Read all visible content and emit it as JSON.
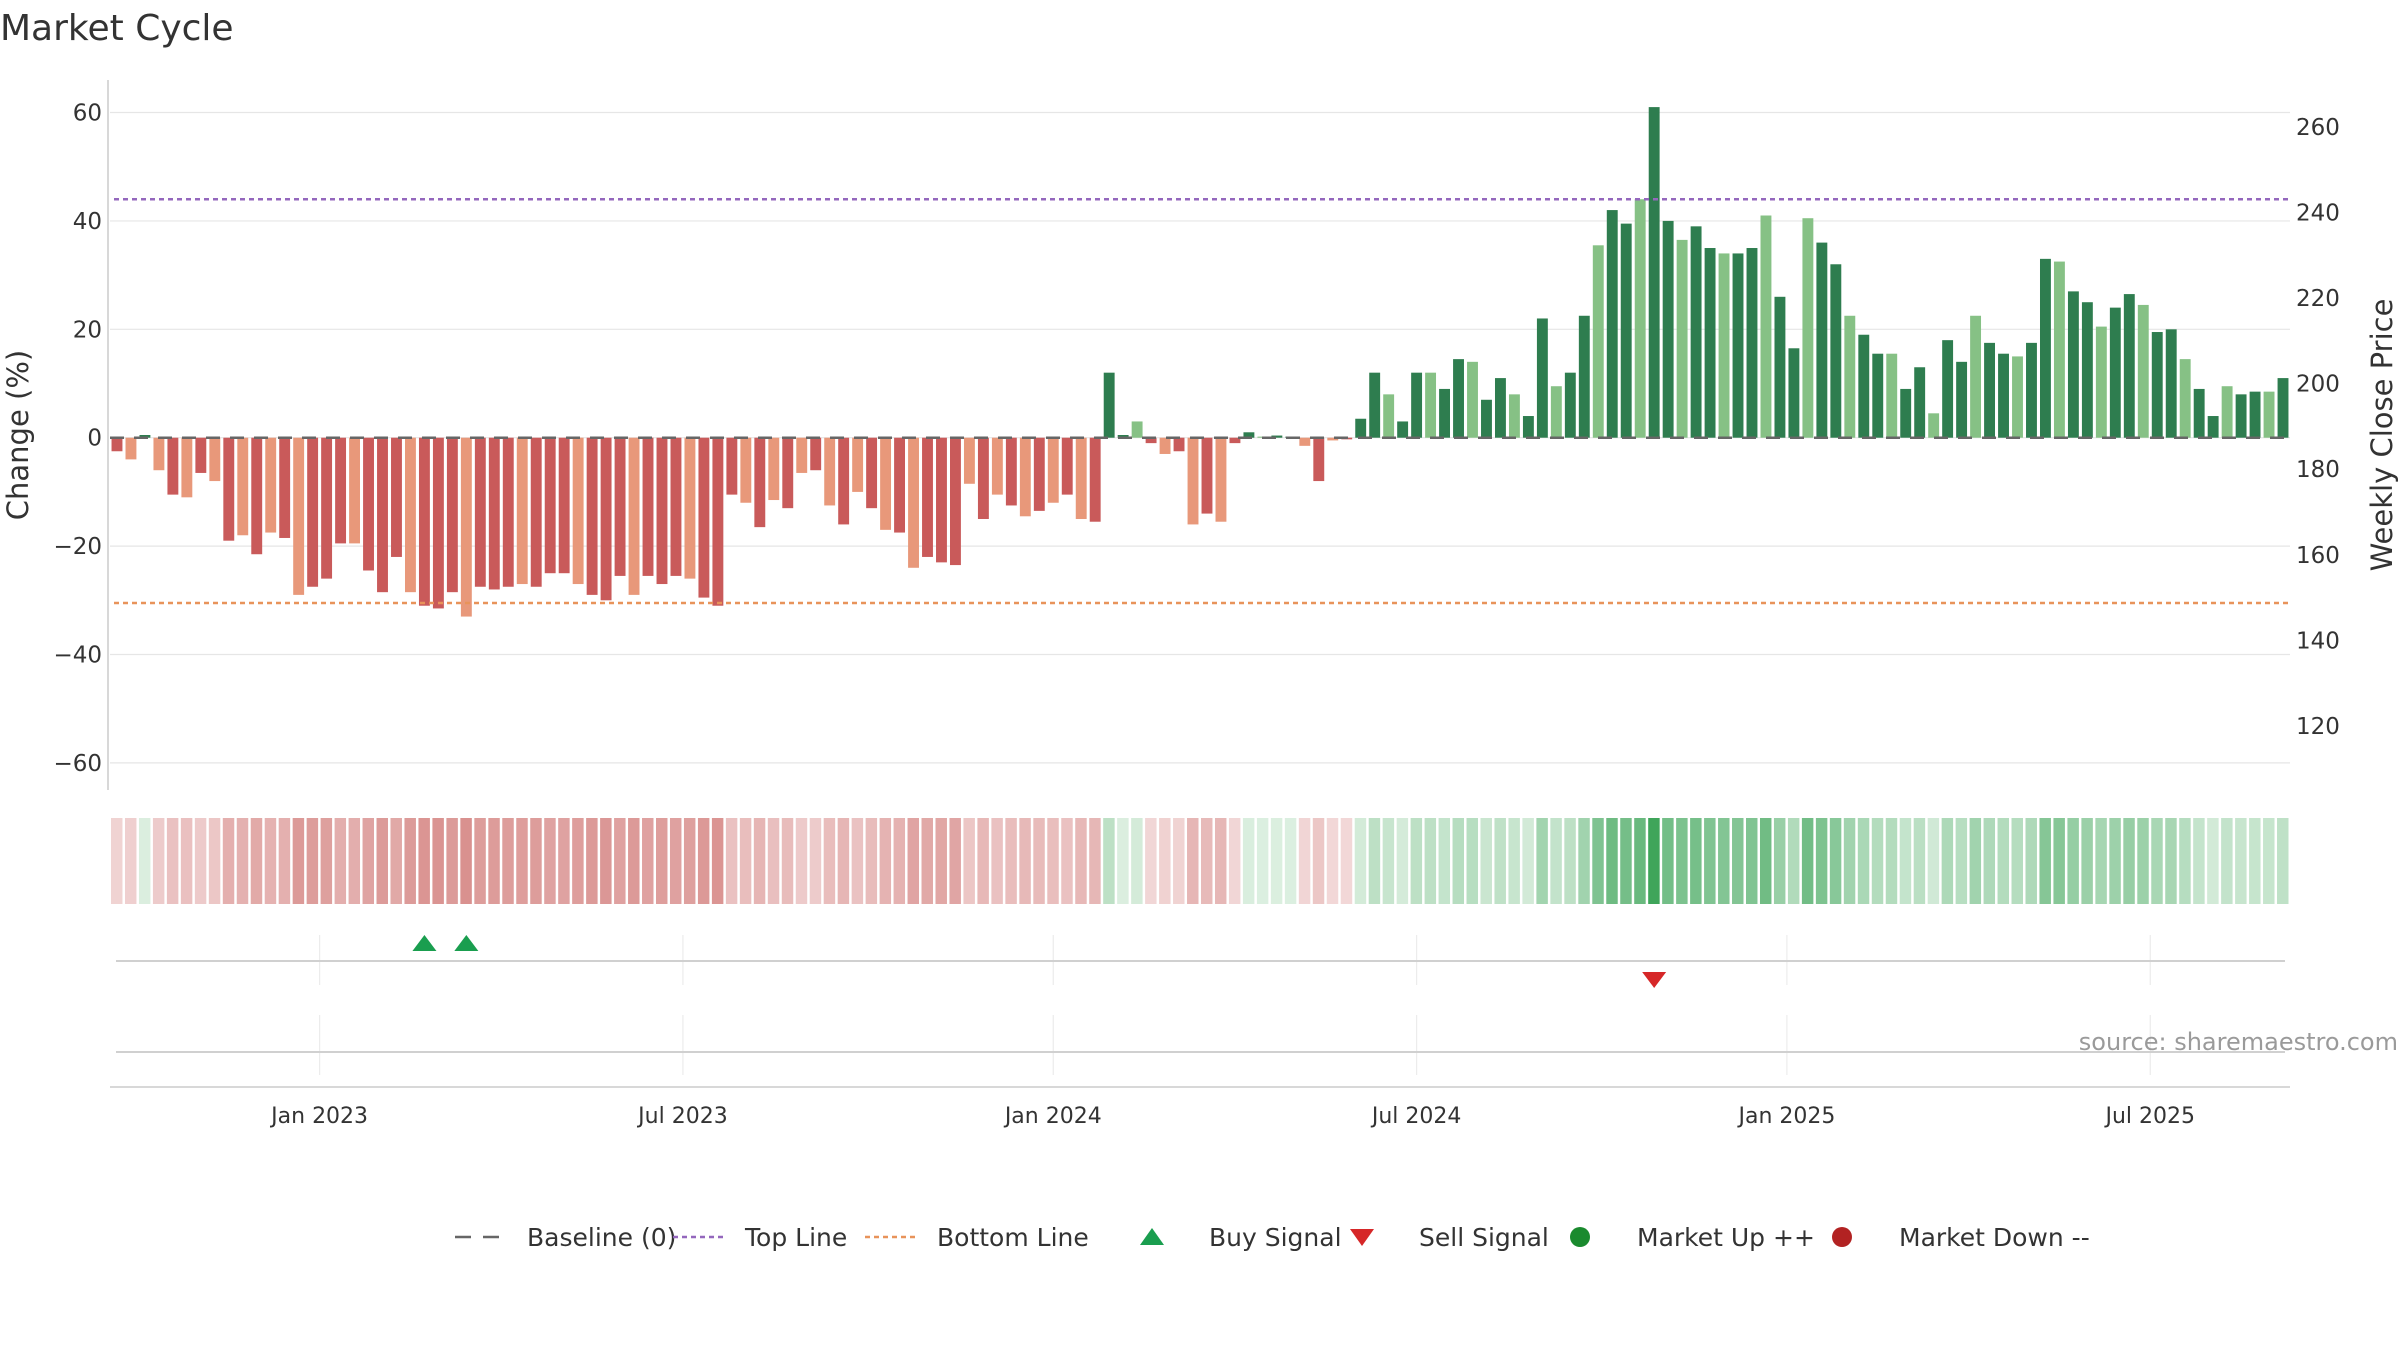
{
  "chart_data": {
    "type": "bar",
    "title": "Market Cycle",
    "source": "source: sharemaestro.com",
    "y_left_label": "Change (%)",
    "y_right_label": "Weekly Close Price",
    "y_left_ticks": [
      "60",
      "40",
      "20",
      "0",
      "−20",
      "−40",
      "−60"
    ],
    "y_left_tick_values": [
      60,
      40,
      20,
      0,
      -20,
      -40,
      -60
    ],
    "y_right_ticks": [
      "260",
      "240",
      "220",
      "200",
      "180",
      "160",
      "140",
      "120"
    ],
    "y_right_tick_values": [
      260,
      240,
      220,
      200,
      180,
      160,
      140,
      120
    ],
    "ylim": [
      -65,
      66
    ],
    "y_right_lim": [
      105,
      271
    ],
    "top_line": 44,
    "bottom_line": -30.5,
    "x_ticks": [
      "Jan 2023",
      "Jul 2023",
      "Jan 2024",
      "Jul 2024",
      "Jan 2025",
      "Jul 2025"
    ],
    "x_tick_week_index": [
      15,
      41,
      67.5,
      93.5,
      120,
      146
    ],
    "values": [
      -2.5,
      -4,
      0.5,
      -6,
      -10.5,
      -11,
      -6.5,
      -8,
      -19,
      -18,
      -21.5,
      -17.5,
      -18.5,
      -29,
      -27.5,
      -26,
      -19.5,
      -19.5,
      -24.5,
      -28.5,
      -22,
      -28.5,
      -31,
      -31.5,
      -28.5,
      -33,
      -27.5,
      -28,
      -27.5,
      -27,
      -27.5,
      -25,
      -25,
      -27,
      -29,
      -30,
      -25.5,
      -29,
      -25.5,
      -27,
      -25.5,
      -26,
      -29.5,
      -31,
      -10.5,
      -12,
      -16.5,
      -11.5,
      -13,
      -6.5,
      -6,
      -12.5,
      -16,
      -10,
      -13,
      -17,
      -17.5,
      -24,
      -22,
      -23,
      -23.5,
      -8.5,
      -15,
      -10.5,
      -12.5,
      -14.5,
      -13.5,
      -12,
      -10.5,
      -15,
      -15.5,
      12,
      0.5,
      3,
      -1,
      -3,
      -2.5,
      -16,
      -14,
      -15.5,
      -1,
      1,
      0.2,
      0.4,
      0.2,
      -1.5,
      -8,
      -0.5,
      -0.3,
      3.5,
      12,
      8,
      3,
      12,
      12,
      9,
      14.5,
      14,
      7,
      11,
      8,
      4,
      22,
      9.5,
      12,
      22.5,
      35.5,
      42,
      39.5,
      44,
      61,
      40,
      36.5,
      39,
      35,
      34,
      34,
      35,
      41,
      26,
      16.5,
      40.5,
      36,
      32,
      22.5,
      19,
      15.5,
      15.5,
      9,
      13,
      4.5,
      18,
      14,
      22.5,
      17.5,
      15.5,
      15,
      17.5,
      33,
      32.5,
      27,
      25,
      20.5,
      24,
      26.5,
      24.5,
      19.5,
      20,
      14.5,
      9,
      4,
      9.5,
      8,
      8.5,
      8.5,
      11
    ],
    "heat_strip_values": [
      -2.5,
      -4,
      0.5,
      -6,
      -10.5,
      -11,
      -6.5,
      -8,
      -19,
      -18,
      -21.5,
      -17.5,
      -18.5,
      -29,
      -27.5,
      -26,
      -19.5,
      -19.5,
      -24.5,
      -28.5,
      -22,
      -28.5,
      -31,
      -31.5,
      -28.5,
      -33,
      -27.5,
      -28,
      -27.5,
      -27,
      -27.5,
      -25,
      -25,
      -27,
      -29,
      -30,
      -25.5,
      -29,
      -25.5,
      -27,
      -25.5,
      -26,
      -29.5,
      -31,
      -10.5,
      -12,
      -16.5,
      -11.5,
      -13,
      -6.5,
      -6,
      -12.5,
      -16,
      -10,
      -13,
      -17,
      -17.5,
      -24,
      -22,
      -23,
      -23.5,
      -8.5,
      -15,
      -10.5,
      -12.5,
      -14.5,
      -13.5,
      -12,
      -10.5,
      -15,
      -15.5,
      12,
      0.5,
      3,
      -1,
      -3,
      -2.5,
      -16,
      -14,
      -15.5,
      -1,
      1,
      0.2,
      0.4,
      0.2,
      -1.5,
      -8,
      -0.5,
      -0.3,
      3.5,
      12,
      8,
      3,
      12,
      12,
      9,
      14.5,
      14,
      7,
      11,
      8,
      4,
      22,
      9.5,
      12,
      22.5,
      35.5,
      42,
      39.5,
      44,
      61,
      40,
      36.5,
      39,
      35,
      34,
      34,
      35,
      41,
      26,
      16.5,
      40.5,
      36,
      32,
      22.5,
      19,
      15.5,
      15.5,
      9,
      13,
      4.5,
      18,
      14,
      22.5,
      17.5,
      15.5,
      15,
      17.5,
      33,
      32.5,
      27,
      25,
      20.5,
      24,
      26.5,
      24.5,
      19.5,
      20,
      14.5,
      9,
      4,
      9.5,
      8,
      8.5,
      8.5,
      11
    ],
    "buy_signal_week_index": [
      22,
      25
    ],
    "sell_signal_week_index": [
      110
    ],
    "colors": {
      "neg_dark": "#c95a5a",
      "neg_light": "#e8987a",
      "pos_dark": "#2e7d4f",
      "pos_light": "#86c185",
      "top_line": "#9467bd",
      "bottom_line": "#e8935a",
      "baseline": "#666666",
      "buy": "#1a9e4f",
      "sell": "#d62728",
      "market_up": "#1a8a2e",
      "market_down": "#b22222"
    },
    "legend": [
      {
        "label": "Baseline (0)",
        "kind": "dash",
        "color": "#666666"
      },
      {
        "label": "Top Line",
        "kind": "dot",
        "color": "#9467bd"
      },
      {
        "label": "Bottom Line",
        "kind": "dot",
        "color": "#e8935a"
      },
      {
        "label": "Buy Signal",
        "kind": "tri-up",
        "color": "#1a9e4f"
      },
      {
        "label": "Sell Signal",
        "kind": "tri-down",
        "color": "#d62728"
      },
      {
        "label": "Market Up ++",
        "kind": "circle",
        "color": "#1a8a2e"
      },
      {
        "label": "Market Down --",
        "kind": "circle",
        "color": "#b22222"
      }
    ],
    "legend_position": "bottom-center",
    "grid": true
  }
}
